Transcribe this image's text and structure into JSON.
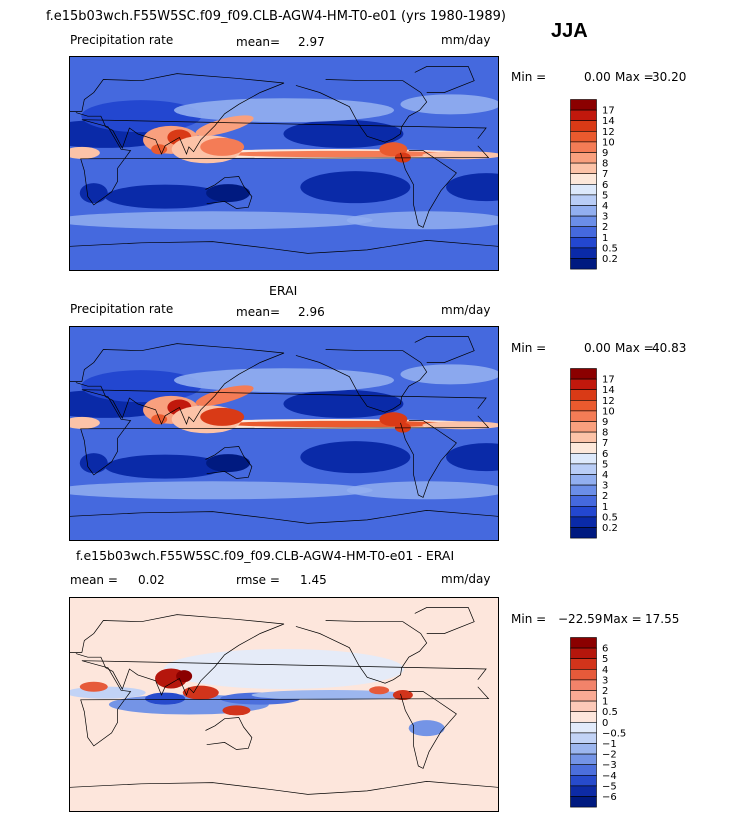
{
  "figure_title": "f.e15b03wch.F55W5SC.f09_f09.CLB-AGW4-HM-T0-e01 (yrs 1980-1989)",
  "season": "JJA",
  "panels": [
    {
      "title": "",
      "variable": "Precipitation rate",
      "left_stat": "mean=",
      "left_val": "2.97",
      "right_stat": "",
      "right_val": "",
      "units": "mm/day",
      "min_label": "Min =",
      "min": "0.00",
      "max_label": "Max =",
      "max": "30.20",
      "colorbar": {
        "labels": [
          "17",
          "14",
          "12",
          "10",
          "9",
          "8",
          "7",
          "6",
          "5",
          "4",
          "3",
          "2",
          "1",
          "0.5",
          "0.2"
        ],
        "colors": [
          "#8b0000",
          "#c1180c",
          "#d93a16",
          "#ea5a2e",
          "#f47c56",
          "#f9a07e",
          "#fcc3a8",
          "#fde8da",
          "#dde9fb",
          "#b9cdf6",
          "#92aff0",
          "#6b8ee8",
          "#4569de",
          "#2347d0",
          "#0a2aa8",
          "#001a80"
        ]
      }
    },
    {
      "title": "ERAI",
      "variable": "Precipitation rate",
      "left_stat": "mean=",
      "left_val": "2.96",
      "right_stat": "",
      "right_val": "",
      "units": "mm/day",
      "min_label": "Min =",
      "min": "0.00",
      "max_label": "Max =",
      "max": "40.83",
      "colorbar": {
        "labels": [
          "17",
          "14",
          "12",
          "10",
          "9",
          "8",
          "7",
          "6",
          "5",
          "4",
          "3",
          "2",
          "1",
          "0.5",
          "0.2"
        ],
        "colors": [
          "#8b0000",
          "#c1180c",
          "#d93a16",
          "#ea5a2e",
          "#f47c56",
          "#f9a07e",
          "#fcc3a8",
          "#fde8da",
          "#dde9fb",
          "#b9cdf6",
          "#92aff0",
          "#6b8ee8",
          "#4569de",
          "#2347d0",
          "#0a2aa8",
          "#001a80"
        ]
      }
    },
    {
      "title": "f.e15b03wch.F55W5SC.f09_f09.CLB-AGW4-HM-T0-e01 - ERAI",
      "variable": "",
      "left_stat": "mean =",
      "left_val": "0.02",
      "right_stat": "rmse =",
      "right_val": "1.45",
      "units": "mm/day",
      "min_label": "Min =",
      "min": "−22.59",
      "max_label": "Max =",
      "max": "17.55",
      "colorbar": {
        "labels": [
          "6",
          "5",
          "4",
          "3",
          "2",
          "1",
          "0.5",
          "0",
          "−0.5",
          "−1",
          "−2",
          "−3",
          "−4",
          "−5",
          "−6"
        ],
        "colors": [
          "#8b0000",
          "#b5160c",
          "#d2341b",
          "#e65a3a",
          "#f2836a",
          "#f9aa94",
          "#fcc9b8",
          "#fde6dc",
          "#e2ebfb",
          "#c2d3f6",
          "#9cb6ef",
          "#7494e6",
          "#4c6fdc",
          "#274bcc",
          "#0d2ba5",
          "#001a80"
        ]
      }
    }
  ]
}
